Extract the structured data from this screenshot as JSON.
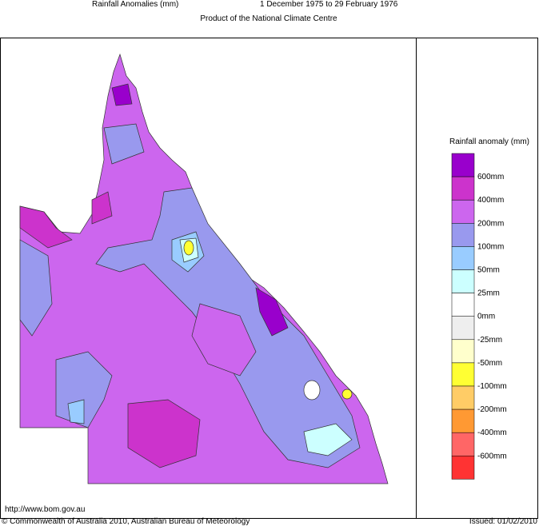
{
  "header": {
    "title": "Rainfall Anomalies (mm)",
    "period": "1 December 1975 to 29 February 1976",
    "subtitle": "Product of the National Climate Centre"
  },
  "legend": {
    "title": "Rainfall anomaly (mm)",
    "colors": [
      "#9900cc",
      "#cc33cc",
      "#cc66ee",
      "#9999ee",
      "#99ccff",
      "#ccffff",
      "#ffffff",
      "#eeeeee",
      "#ffffcc",
      "#ffff33",
      "#ffcc66",
      "#ff9933",
      "#ff6666",
      "#ff3333"
    ],
    "labels": [
      "600mm",
      "400mm",
      "200mm",
      "100mm",
      "50mm",
      "25mm",
      "0mm",
      "-25mm",
      "-50mm",
      "-100mm",
      "-200mm",
      "-400mm",
      "-600mm"
    ]
  },
  "footer": {
    "url": "http://www.bom.gov.au",
    "copyright": "© Commonwealth of Australia 2010, Australian Bureau of Meteorology",
    "issued": "Issued: 01/02/2010"
  }
}
